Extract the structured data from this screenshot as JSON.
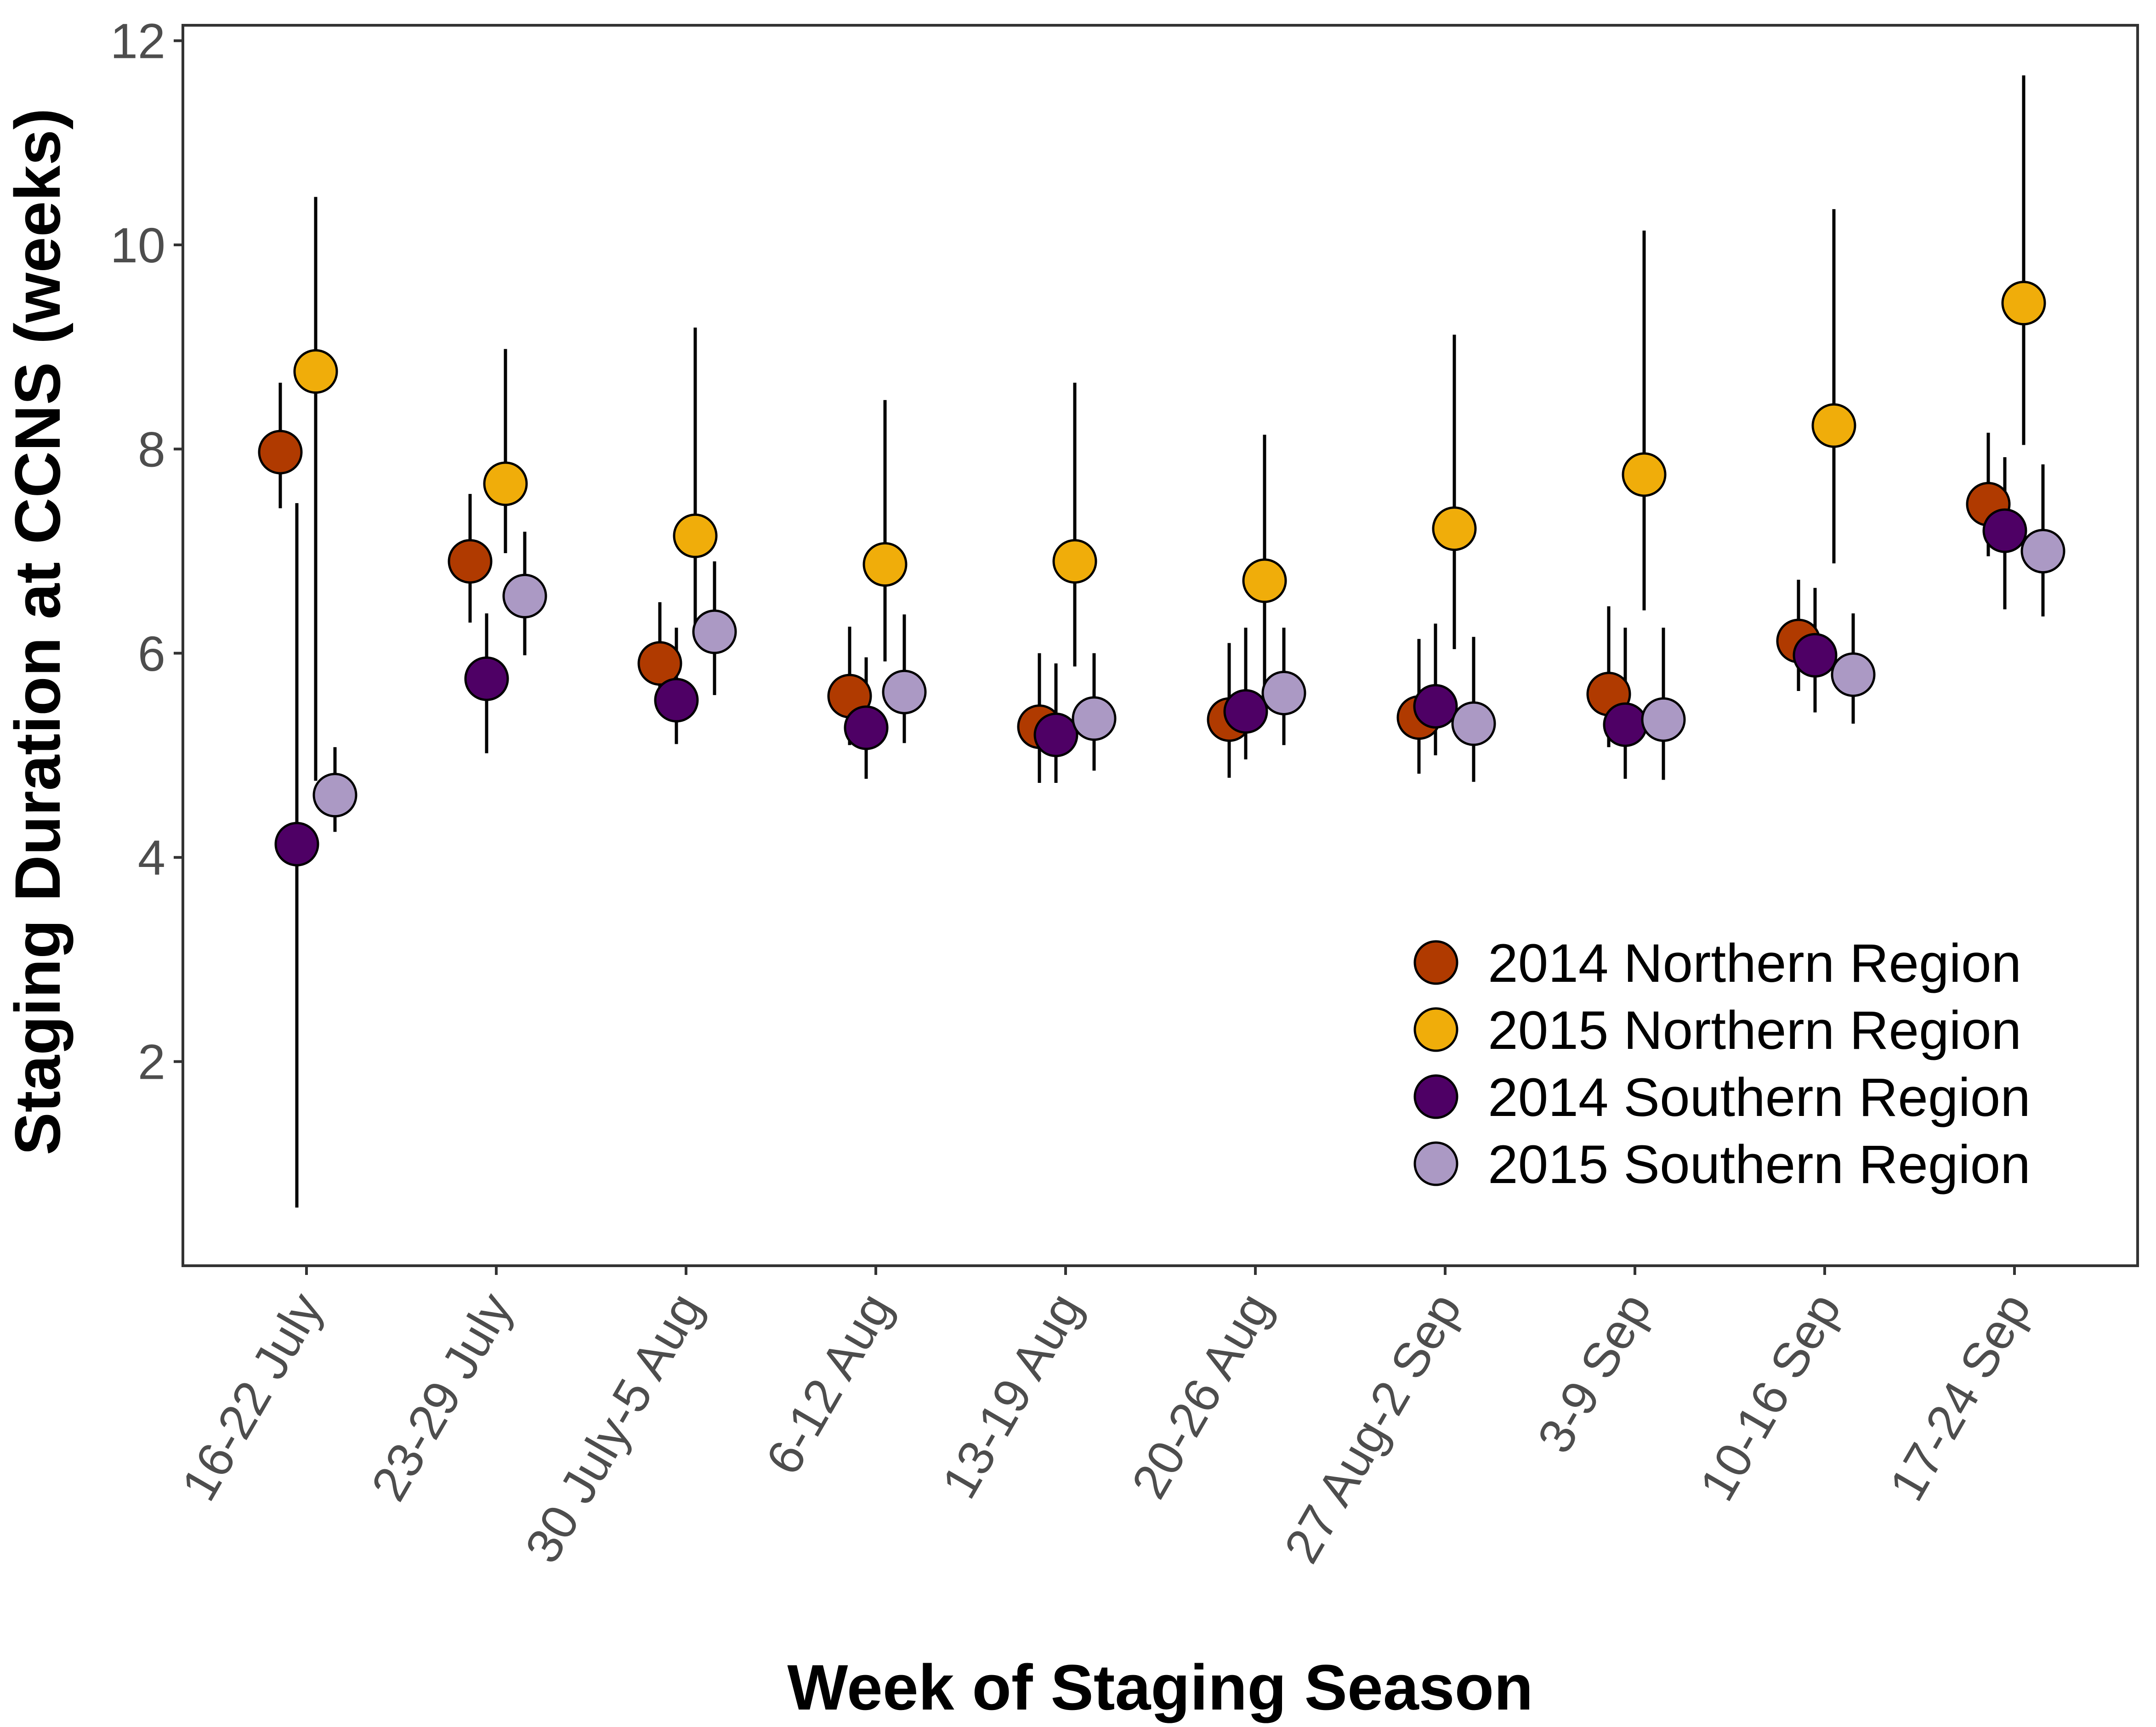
{
  "chart_data": {
    "type": "scatter",
    "xlabel": "Week of Staging Season",
    "ylabel": "Staging Duration at CCNS (weeks)",
    "ylim": [
      0,
      12
    ],
    "yticks": [
      2,
      4,
      6,
      8,
      10,
      12
    ],
    "grid": false,
    "legend_position": "bottom-right",
    "categories": [
      "16-22 July",
      "23-29 July",
      "30 July-5 Aug",
      "6-12 Aug",
      "13-19 Aug",
      "20-26 Aug",
      "27 Aug-2 Sep",
      "3-9 Sep",
      "10-16 Sep",
      "17-24 Sep"
    ],
    "series": [
      {
        "name": "2014 Northern Region",
        "color": "#b03a00",
        "values": [
          7.97,
          6.9,
          5.9,
          5.58,
          5.28,
          5.35,
          5.37,
          5.6,
          6.12,
          7.46
        ],
        "lower": [
          7.42,
          6.3,
          5.42,
          5.1,
          4.73,
          4.78,
          4.82,
          5.08,
          5.63,
          6.95
        ],
        "upper": [
          8.65,
          7.56,
          6.5,
          6.26,
          6.0,
          6.1,
          6.14,
          6.46,
          6.72,
          8.16
        ]
      },
      {
        "name": "2015 Northern Region",
        "color": "#f0ad0a",
        "values": [
          8.76,
          7.66,
          7.15,
          6.87,
          6.9,
          6.71,
          7.22,
          7.75,
          8.23,
          9.43
        ],
        "lower": [
          4.75,
          6.98,
          6.28,
          5.92,
          5.87,
          5.58,
          6.04,
          6.42,
          6.88,
          8.04
        ],
        "upper": [
          10.47,
          8.98,
          9.19,
          8.48,
          8.65,
          8.14,
          9.12,
          10.14,
          10.35,
          11.66
        ]
      },
      {
        "name": "2014 Southern Region",
        "color": "#4e0065",
        "values": [
          4.13,
          5.75,
          5.54,
          5.27,
          5.2,
          5.43,
          5.48,
          5.3,
          5.98,
          7.2
        ],
        "lower": [
          0.57,
          5.02,
          5.11,
          4.77,
          4.73,
          4.96,
          5.0,
          4.77,
          5.42,
          6.43
        ],
        "upper": [
          7.47,
          6.39,
          6.25,
          5.96,
          5.9,
          6.25,
          6.29,
          6.25,
          6.64,
          7.92
        ]
      },
      {
        "name": "2015 Southern Region",
        "color": "#ab99c4",
        "values": [
          4.61,
          6.56,
          6.21,
          5.62,
          5.36,
          5.61,
          5.31,
          5.35,
          5.79,
          7.0
        ],
        "lower": [
          4.25,
          5.98,
          5.59,
          5.12,
          4.85,
          5.1,
          4.74,
          4.76,
          5.31,
          6.36
        ],
        "upper": [
          5.08,
          7.19,
          6.9,
          6.38,
          6.0,
          6.25,
          6.16,
          6.25,
          6.39,
          7.85
        ]
      }
    ]
  }
}
